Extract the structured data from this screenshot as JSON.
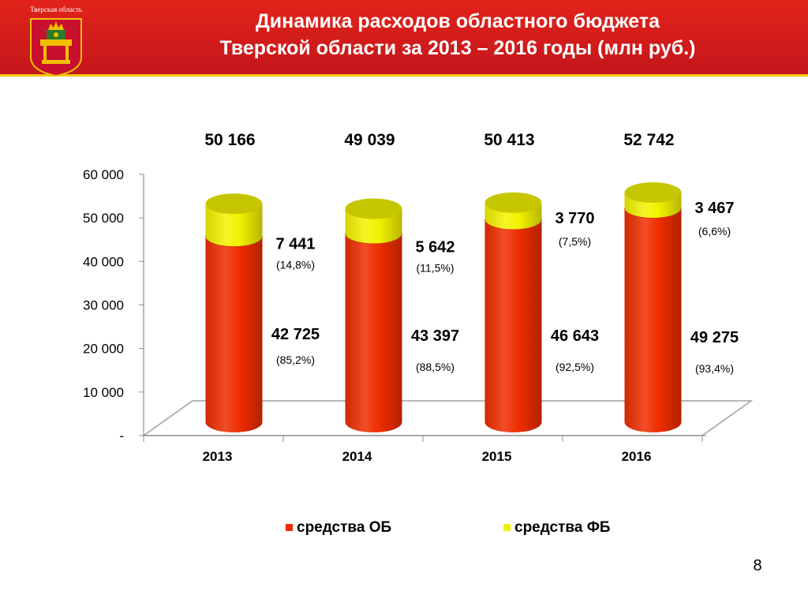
{
  "header": {
    "emblem_caption": "Тверская область",
    "title_line1": "Динамика расходов областного бюджета",
    "title_line2": "Тверской области за 2013 – 2016 годы  (млн руб.)"
  },
  "colors": {
    "header_red": "#d21d1b",
    "header_stripe": "#f5c400",
    "series_ob": "#ee2d00",
    "series_fb": "#f2f200"
  },
  "chart_data": {
    "type": "bar",
    "stacked": true,
    "style": "3d-cylinder",
    "categories": [
      "2013",
      "2014",
      "2015",
      "2016"
    ],
    "totals": [
      "50 166",
      "49 039",
      "50 413",
      "52 742"
    ],
    "series": [
      {
        "name": "средства ОБ",
        "color": "#ee2d00",
        "values": [
          42725,
          43397,
          46643,
          49275
        ],
        "labels": [
          "42 725",
          "43 397",
          "46 643",
          "49 275"
        ],
        "shares": [
          "(85,2%)",
          "(88,5%)",
          "(92,5%)",
          "(93,4%)"
        ]
      },
      {
        "name": "средства ФБ",
        "color": "#f2f200",
        "values": [
          7441,
          5642,
          3770,
          3467
        ],
        "labels": [
          "7 441",
          "5 642",
          "3 770",
          "3 467"
        ],
        "shares": [
          "(14,8%)",
          "(11,5%)",
          "(7,5%)",
          "(6,6%)"
        ]
      }
    ],
    "yticks": [
      "-",
      "10 000",
      "20 000",
      "30 000",
      "40 000",
      "50 000",
      "60 000"
    ],
    "ylim": [
      0,
      60000
    ],
    "legend_position": "bottom"
  },
  "slide_number": "8"
}
